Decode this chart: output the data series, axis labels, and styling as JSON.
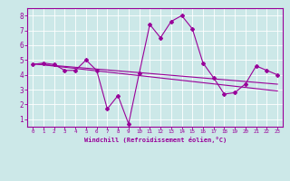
{
  "xlabel": "Windchill (Refroidissement éolien,°C)",
  "x": [
    0,
    1,
    2,
    3,
    4,
    5,
    6,
    7,
    8,
    9,
    10,
    11,
    12,
    13,
    14,
    15,
    16,
    17,
    18,
    19,
    20,
    21,
    22,
    23
  ],
  "y_data": [
    4.7,
    4.8,
    4.7,
    4.3,
    4.3,
    5.0,
    4.3,
    1.7,
    2.6,
    0.7,
    4.1,
    7.4,
    6.5,
    7.6,
    8.0,
    7.1,
    4.8,
    3.8,
    2.7,
    2.8,
    3.4,
    4.6,
    4.3,
    4.0
  ],
  "y_trend1": [
    4.75,
    4.69,
    4.63,
    4.57,
    4.51,
    4.45,
    4.39,
    4.33,
    4.27,
    4.21,
    4.15,
    4.09,
    4.03,
    3.97,
    3.91,
    3.85,
    3.79,
    3.73,
    3.67,
    3.61,
    3.55,
    3.49,
    3.43,
    3.37
  ],
  "y_trend2": [
    4.75,
    4.67,
    4.59,
    4.51,
    4.43,
    4.35,
    4.27,
    4.19,
    4.11,
    4.03,
    3.95,
    3.87,
    3.79,
    3.71,
    3.63,
    3.55,
    3.47,
    3.39,
    3.31,
    3.23,
    3.15,
    3.07,
    2.99,
    2.91
  ],
  "line_color": "#990099",
  "bg_color": "#cce8e8",
  "grid_color": "#ffffff",
  "xlim": [
    -0.5,
    23.5
  ],
  "ylim": [
    0.5,
    8.5
  ],
  "yticks": [
    1,
    2,
    3,
    4,
    5,
    6,
    7,
    8
  ],
  "xticks": [
    0,
    1,
    2,
    3,
    4,
    5,
    6,
    7,
    8,
    9,
    10,
    11,
    12,
    13,
    14,
    15,
    16,
    17,
    18,
    19,
    20,
    21,
    22,
    23
  ],
  "xlabel_fontsize": 5.0,
  "ytick_fontsize": 5.5,
  "xtick_fontsize": 4.2
}
